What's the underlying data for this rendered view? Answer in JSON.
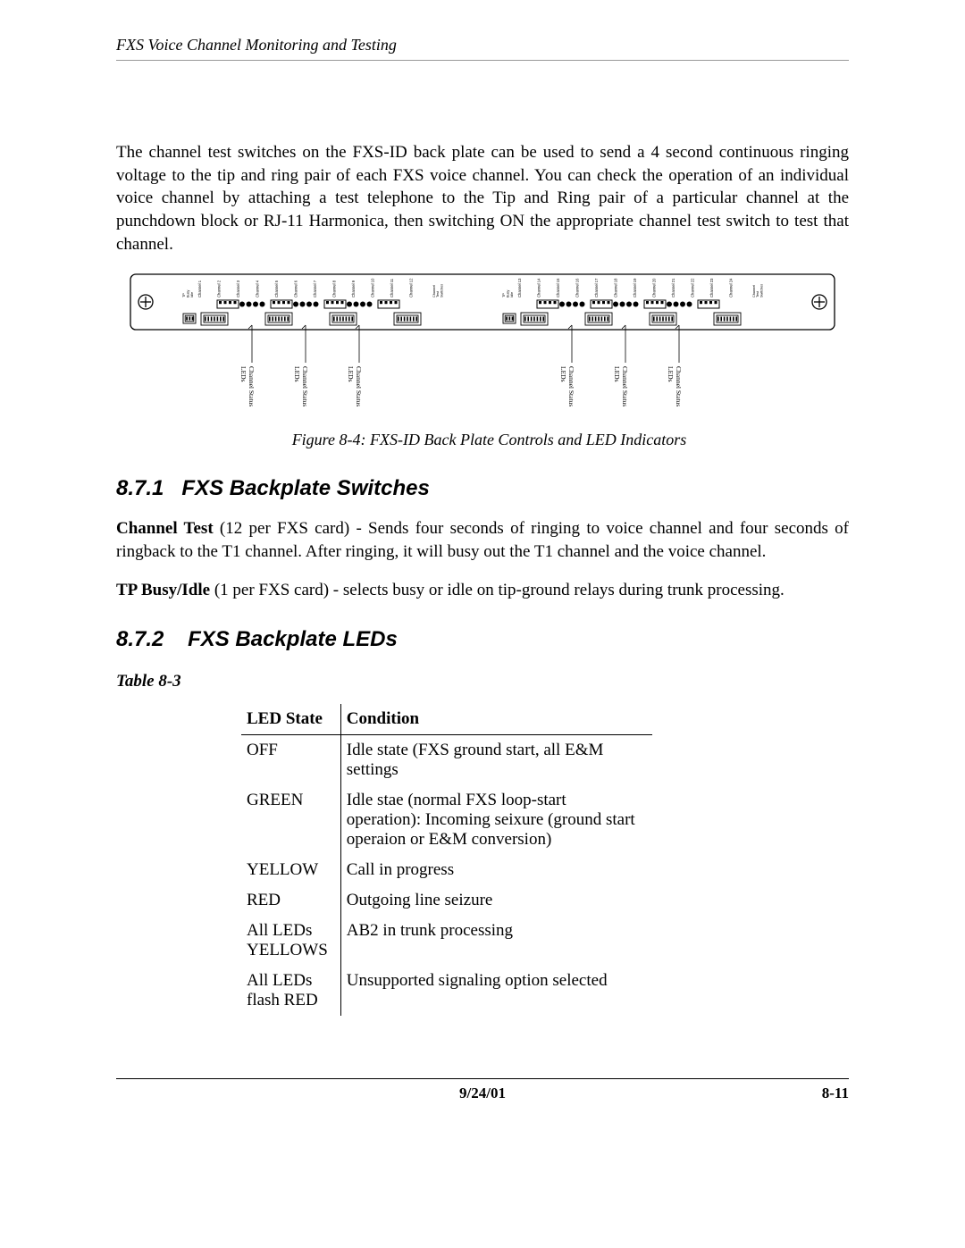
{
  "header": {
    "running_title": "FXS Voice Channel Monitoring and Testing"
  },
  "intro_para": "The channel test switches on the FXS-ID back plate can be used to send a 4 second continuous ringing voltage to the tip and ring pair of each FXS voice channel. You can check the operation of an individual voice channel by attaching a test telephone to the Tip and Ring pair of a particular channel at the punchdown block or RJ-11 Harmonica, then switching ON the appropriate channel test switch to test that channel.",
  "figure": {
    "caption": "Figure 8-4: FXS-ID Back Plate Controls and LED Indicators",
    "led_callout": "Channel Status LEDs",
    "channel_label_prefix": "Channel",
    "tp_label_line1": "TP",
    "tp_label_line2": "Busy",
    "tp_label_line3": "Idle",
    "switch_block_label": "Channel Test Switches",
    "half_a": {
      "channels": [
        1,
        2,
        3,
        4,
        5,
        6,
        7,
        8,
        9,
        10,
        11,
        12
      ]
    },
    "half_b": {
      "channels": [
        13,
        14,
        15,
        16,
        17,
        18,
        19,
        20,
        21,
        22,
        23,
        24
      ]
    },
    "plate_stroke": "#000000",
    "plate_fill": "#ffffff",
    "led_color": "#000000"
  },
  "sections": {
    "s1": {
      "number": "8.7.1",
      "title": "FXS Backplate Switches"
    },
    "s2": {
      "number": "8.7.2",
      "title": "FXS Backplate LEDs"
    }
  },
  "definitions": {
    "channel_test": {
      "term": "Channel Test",
      "rest": " (12 per FXS card) - Sends four seconds of ringing to voice channel and four seconds of ringback to the T1 channel. After ringing, it will busy out the T1 channel and the voice channel."
    },
    "tp_busy_idle": {
      "term": "TP Busy/Idle",
      "rest": " (1 per FXS card) - selects busy or idle on tip-ground relays during trunk processing."
    }
  },
  "table": {
    "label": "Table 8-3",
    "columns": [
      "LED State",
      "Condition"
    ],
    "rows": [
      [
        "OFF",
        "Idle state (FXS ground start, all E&M settings"
      ],
      [
        "GREEN",
        "Idle stae (normal FXS loop-start operation): Incoming seixure (ground start operaion or E&M conversion)"
      ],
      [
        "YELLOW",
        "Call in progress"
      ],
      [
        "RED",
        "Outgoing line seizure"
      ],
      [
        "All LEDs YELLOWS",
        "AB2 in trunk processing"
      ],
      [
        "All LEDs flash RED",
        "Unsupported signaling option selected"
      ]
    ]
  },
  "footer": {
    "date": "9/24/01",
    "page": "8-11"
  }
}
